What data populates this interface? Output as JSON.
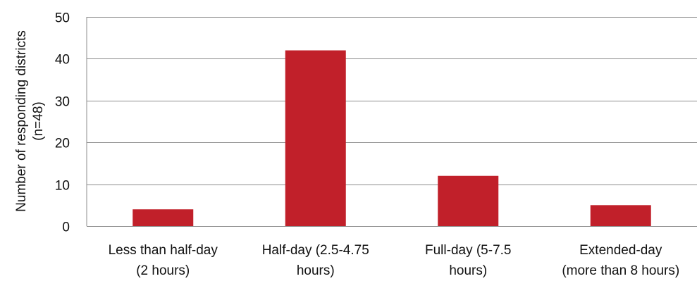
{
  "chart_data": {
    "type": "bar",
    "categories": [
      [
        "Less than half-day",
        "(2 hours)"
      ],
      [
        "Half-day (2.5-4.75",
        "hours)"
      ],
      [
        "Full-day (5-7.5",
        "hours)"
      ],
      [
        "Extended-day",
        "(more than 8 hours)"
      ]
    ],
    "values": [
      4,
      42,
      12,
      5
    ],
    "ylabel": [
      "Number of responding districts",
      "(n=48)"
    ],
    "xlabel": "",
    "ylim": [
      0,
      50
    ],
    "yticks": [
      0,
      10,
      20,
      30,
      40,
      50
    ],
    "grid": true,
    "legend": "none",
    "colors": {
      "bar": "#c1202a",
      "grid": "#8c8c8c",
      "axis": "#8c8c8c"
    }
  }
}
